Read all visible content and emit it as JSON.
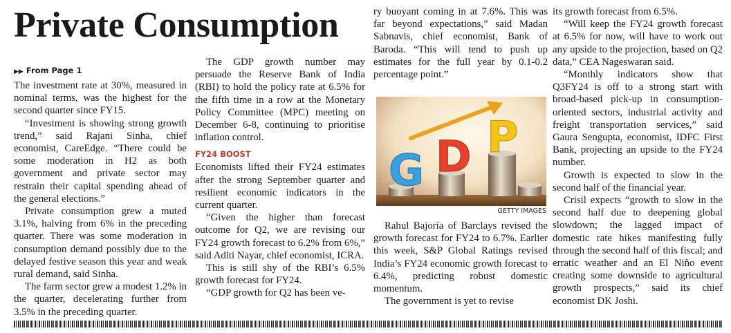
{
  "headline": "Private Consumption",
  "kicker": "From Page 1",
  "kicker_icon": "double-arrow-right-icon",
  "col1": [
    "The investment rate at 30%, measured in nominal terms, was the highest for the second quarter since FY15.",
    "“Investment is showing strong growth trend,” said Rajani Sinha, chief economist, CareEdge. “There could be some moderation in H2 as both government and private sector may restrain their capital spending ahead of the general elections.”",
    "Private consumption grew a muted 3.1%, halving from 6% in the preceding quarter. There was some moderation in consumption demand possibly due to the delayed festive season this year and weak rural demand, said Sinha.",
    "The farm sector grew a modest 1.2% in the quarter, decelerating further from 3.5% in the preceding quarter."
  ],
  "col2": [
    "The GDP growth number may persuade the Reserve Bank of India (RBI) to hold the policy rate at 6.5% for the fifth time in a row at the Monetary Policy Committee (MPC) meeting on December 6-8, continuing to prioritise inflation control."
  ],
  "subhead": "FY24 BOOST",
  "subhead_color": "#c0392b",
  "col2b": [
    "Economists lifted their FY24 estimates after the strong September quarter and resilient economic indicators in the current quarter.",
    "“Given the higher than forecast outcome for Q2, we are revising our FY24 growth forecast to 6.2% from 6%,” said Aditi Nayar, chief economist, ICRA.",
    "This is still shy of the RBI’s 6.5% growth forecast for FY24.",
    "“GDP growth for Q2 has been ve-"
  ],
  "col3": [
    "ry buoyant coming in at 7.6%. This was far beyond expectations,” said Madan Sabnavis, chief economist, Bank of Baroda. “This will tend to push up estimates for the full year by 0.1-0.2 percentage point.”"
  ],
  "photo": {
    "letters": [
      "G",
      "D",
      "P"
    ],
    "credit": "GETTY IMAGES",
    "colors": {
      "g": "#3aa0e0",
      "d": "#e8412b",
      "p": "#f5c518",
      "arrow": "#e9a21c"
    }
  },
  "col3b": [
    "Rahul Bajoria of Barclays revised the growth forecast for FY24 to 6.7%. Earlier this week, S&P Global Ratings revised India’s FY24 economic growth forecast to 6.4%, predicting robust domestic momentum.",
    "The government is yet to revise"
  ],
  "col4": [
    "its growth forecast from 6.5%.",
    "“Will keep the FY24 growth forecast at 6.5% for now, will have to work out any upside to the projection, based on Q2 data,” CEA Nageswaran said.",
    "“Monthly indicators show that Q3FY24 is off to a strong start with broad-based pick-up in consumption-oriented sectors, industrial activity and freight transportation services,” said Gaura Sengupta, economist, IDFC First Bank, projecting an upside to the FY24 number.",
    "Growth is expected to slow in the second half of the financial year.",
    "Crisil expects “growth to slow in the second half due to deepening global slowdown; the lagged impact of domestic rate hikes manifesting fully through the second half of this fiscal; and erratic weather and an El Niño event creating some downside to agricultural growth prospects,” said its chief economist DK Joshi."
  ]
}
